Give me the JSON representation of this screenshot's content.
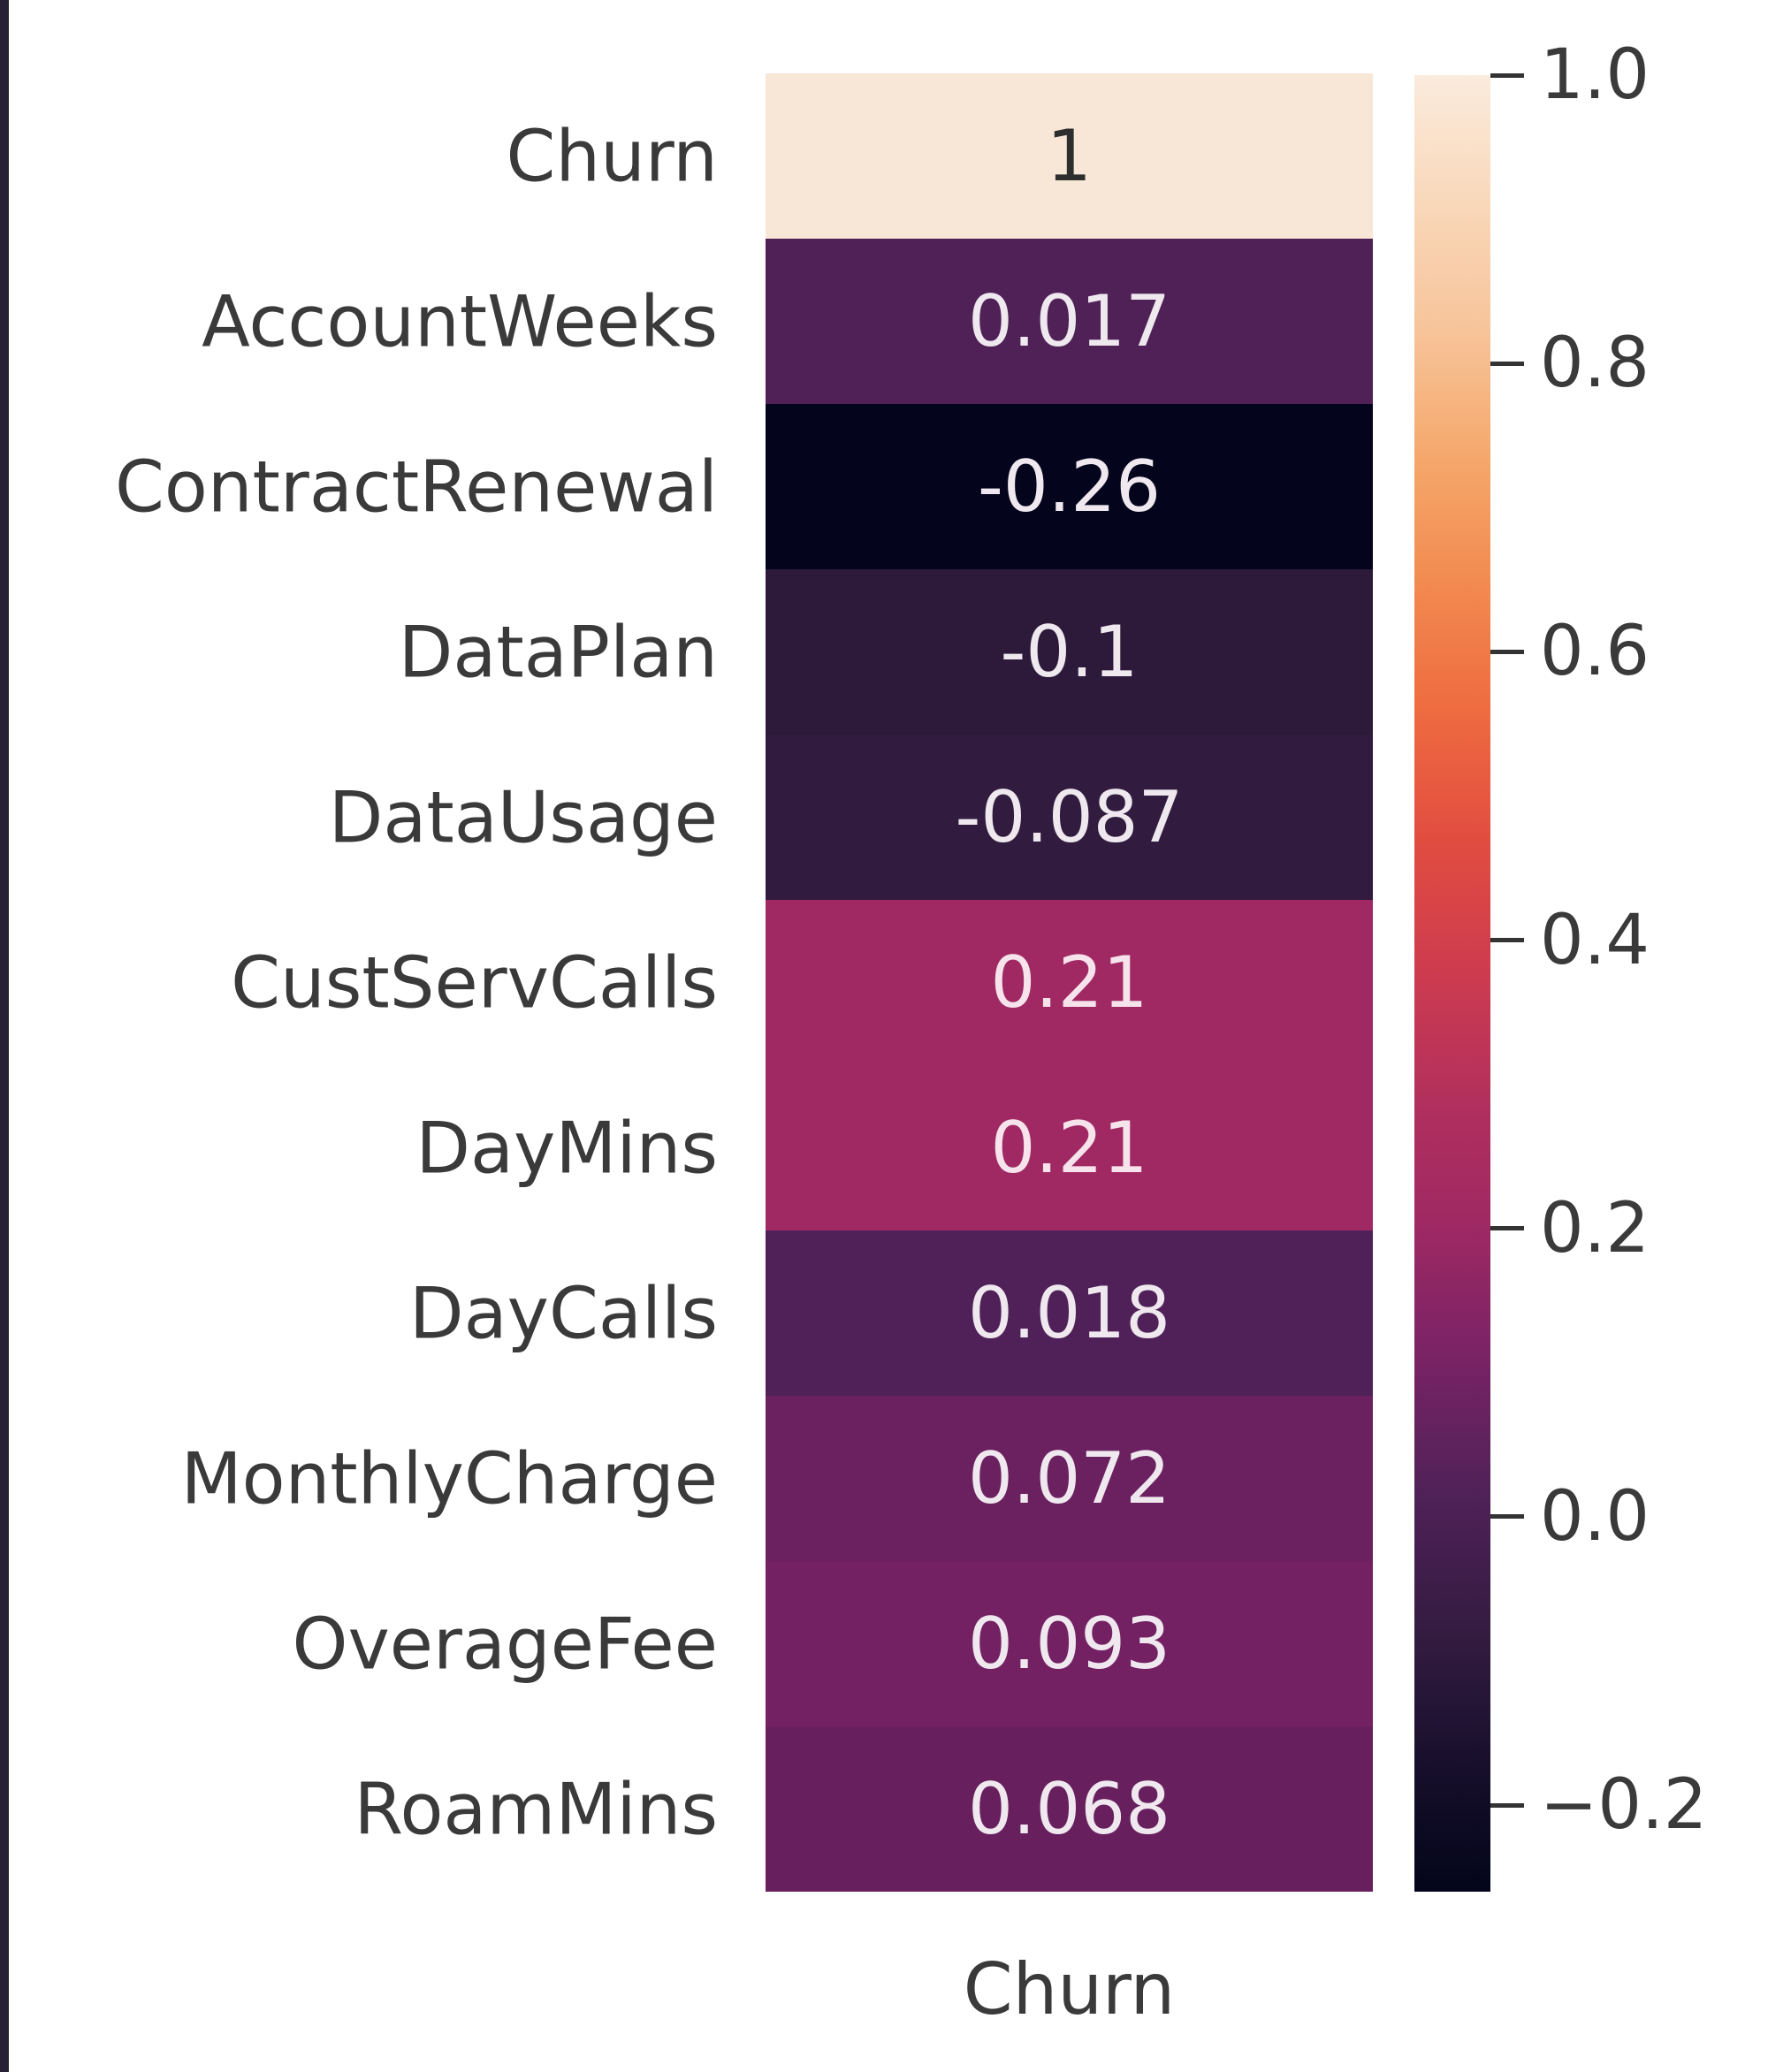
{
  "figure": {
    "background": "#ffffff",
    "left_stripe_color": "#262135",
    "tick_color": "#333333",
    "label_color": "#3a3a3a"
  },
  "chart_data": {
    "type": "heatmap",
    "title": "",
    "x_axis_label": "Churn",
    "columns": [
      "Churn"
    ],
    "categories": [
      "Churn",
      "AccountWeeks",
      "ContractRenewal",
      "DataPlan",
      "DataUsage",
      "CustServCalls",
      "DayMins",
      "DayCalls",
      "MonthlyCharge",
      "OverageFee",
      "RoamMins"
    ],
    "values": [
      1,
      0.017,
      -0.26,
      -0.1,
      -0.087,
      0.21,
      0.21,
      0.018,
      0.072,
      0.093,
      0.068
    ],
    "rows": [
      {
        "label": "Churn",
        "value": "1",
        "color": "#f8e7d6",
        "text_color": "#2e2e2e"
      },
      {
        "label": "AccountWeeks",
        "value": "0.017",
        "color": "#4f2157",
        "text_color": "#efe9ef"
      },
      {
        "label": "ContractRenewal",
        "value": "-0.26",
        "color": "#05041d",
        "text_color": "#efe9ef"
      },
      {
        "label": "DataPlan",
        "value": "-0.1",
        "color": "#2d1a3b",
        "text_color": "#efe9ef"
      },
      {
        "label": "DataUsage",
        "value": "-0.087",
        "color": "#311b3f",
        "text_color": "#efe9ef"
      },
      {
        "label": "CustServCalls",
        "value": "0.21",
        "color": "#a02963",
        "text_color": "#f7e3ec"
      },
      {
        "label": "DayMins",
        "value": "0.21",
        "color": "#a02963",
        "text_color": "#f7e3ec"
      },
      {
        "label": "DayCalls",
        "value": "0.018",
        "color": "#502158",
        "text_color": "#efe9ef"
      },
      {
        "label": "MonthlyCharge",
        "value": "0.072",
        "color": "#6b2060",
        "text_color": "#efe9ef"
      },
      {
        "label": "OverageFee",
        "value": "0.093",
        "color": "#742164",
        "text_color": "#efe9ef"
      },
      {
        "label": "RoamMins",
        "value": "0.068",
        "color": "#681f5e",
        "text_color": "#efe9ef"
      }
    ],
    "colorbar": {
      "vmin": -0.26,
      "vmax": 1.0,
      "tick_labels": [
        "1.0",
        "0.8",
        "0.6",
        "0.4",
        "0.2",
        "0.0",
        "−0.2"
      ],
      "tick_values": [
        1.0,
        0.8,
        0.6,
        0.4,
        0.2,
        0.0,
        -0.2
      ],
      "legend_position": "right",
      "gradient_stops": [
        {
          "p": 0,
          "c": "#faebdd"
        },
        {
          "p": 7,
          "c": "#f9d8ba"
        },
        {
          "p": 14,
          "c": "#f7c49a"
        },
        {
          "p": 21,
          "c": "#f5a86c"
        },
        {
          "p": 28,
          "c": "#f28a50"
        },
        {
          "p": 35,
          "c": "#ee6b40"
        },
        {
          "p": 42,
          "c": "#e24d40"
        },
        {
          "p": 50,
          "c": "#cb3a50"
        },
        {
          "p": 57,
          "c": "#b02f5e"
        },
        {
          "p": 63,
          "c": "#a02963"
        },
        {
          "p": 70,
          "c": "#7c2366"
        },
        {
          "p": 78,
          "c": "#502158"
        },
        {
          "p": 86,
          "c": "#331b40"
        },
        {
          "p": 93,
          "c": "#170f2c"
        },
        {
          "p": 100,
          "c": "#03051a"
        }
      ]
    }
  }
}
